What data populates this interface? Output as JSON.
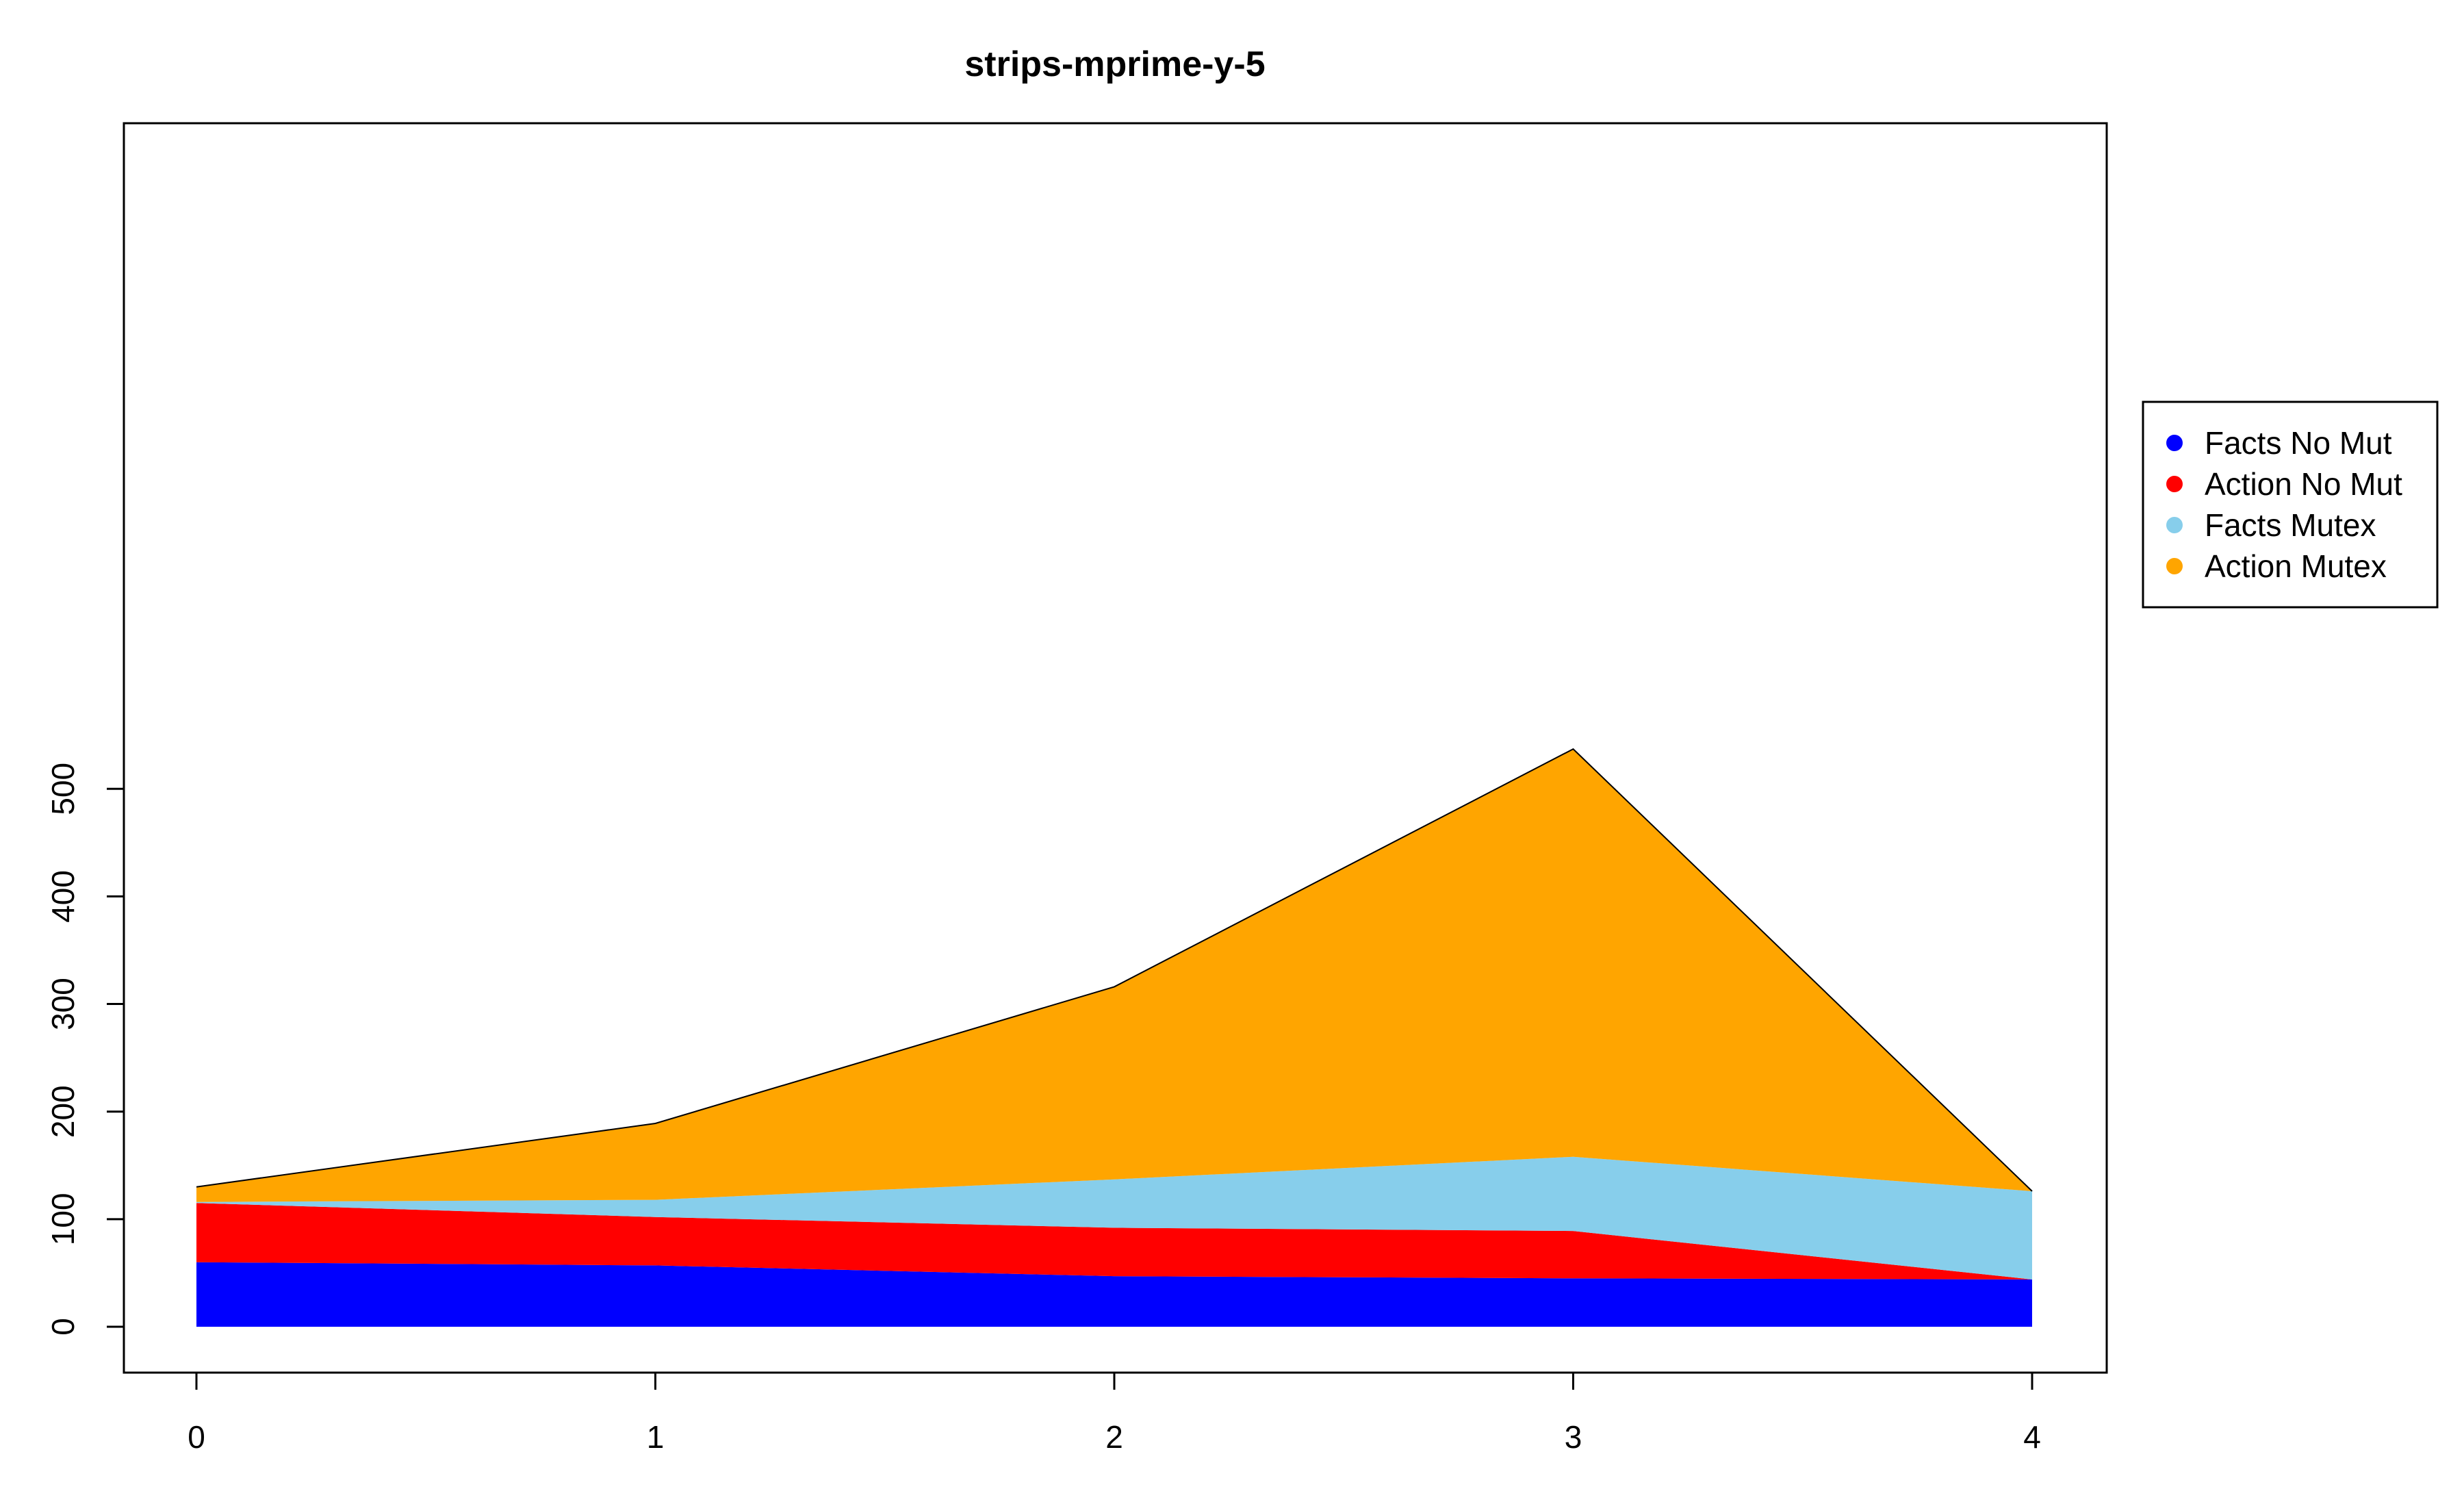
{
  "chart_data": {
    "type": "area",
    "stacked": true,
    "title": "strips-mprime-y-5",
    "xlabel": "",
    "ylabel": "",
    "x": [
      0,
      1,
      2,
      3,
      4
    ],
    "xlim": [
      0,
      4
    ],
    "ylim": [
      0,
      540
    ],
    "xticks": [
      0,
      1,
      2,
      3,
      4
    ],
    "yticks": [
      0,
      100,
      200,
      300,
      400,
      500
    ],
    "grid": false,
    "legend_position": "right",
    "series": [
      {
        "name": "Facts No Mut",
        "color": "#0000FF",
        "values": [
          60,
          57,
          47,
          45,
          44
        ]
      },
      {
        "name": "Action No Mut",
        "color": "#FF0000",
        "values": [
          55,
          45,
          45,
          44,
          0
        ]
      },
      {
        "name": "Facts Mutex",
        "color": "#87CEEB",
        "values": [
          1,
          16,
          45,
          69,
          82
        ]
      },
      {
        "name": "Action Mutex",
        "color": "#FFA500",
        "values": [
          14,
          71,
          179,
          379,
          0
        ]
      }
    ]
  }
}
